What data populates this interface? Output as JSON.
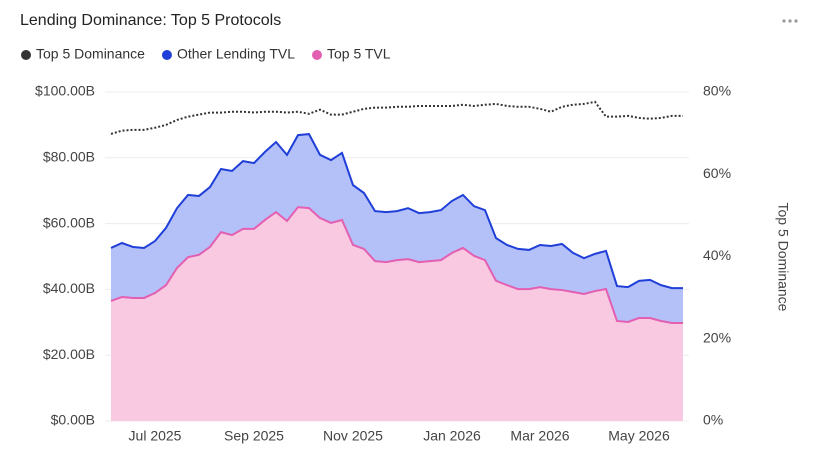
{
  "chart_data": {
    "type": "area",
    "stacked": true,
    "title": "Lending Dominance: Top 5 Protocols",
    "y2label": "Top 5 Dominance",
    "categories": [
      null,
      null,
      null,
      null,
      "Jul 2025",
      null,
      null,
      null,
      null,
      null,
      null,
      null,
      null,
      "Sep 2025",
      null,
      null,
      null,
      null,
      null,
      null,
      null,
      null,
      "Nov 2025",
      null,
      null,
      null,
      null,
      null,
      null,
      null,
      null,
      "Jan 2026",
      null,
      null,
      null,
      null,
      null,
      null,
      null,
      "Mar 2026",
      null,
      null,
      null,
      null,
      null,
      null,
      null,
      null,
      "May 2026",
      null,
      null,
      null,
      null
    ],
    "series": [
      {
        "name": "Top 5 Dominance",
        "color": "#333333",
        "axis": "y2",
        "dotted": true,
        "values": [
          69.8,
          70.6,
          70.8,
          70.8,
          71.3,
          72.0,
          73.2,
          74.0,
          74.5,
          75.0,
          75.0,
          75.2,
          75.2,
          75.0,
          75.2,
          75.2,
          75.0,
          75.2,
          74.7,
          75.7,
          74.5,
          74.5,
          75.2,
          75.9,
          76.2,
          76.2,
          76.4,
          76.4,
          76.6,
          76.6,
          76.6,
          76.6,
          76.9,
          76.6,
          76.9,
          77.1,
          76.6,
          76.4,
          76.4,
          75.9,
          75.2,
          76.4,
          76.9,
          77.1,
          77.6,
          74.0,
          74.0,
          74.2,
          73.7,
          73.5,
          73.7,
          74.2,
          74.2
        ]
      },
      {
        "name": "Other Lending TVL",
        "color": "#1f3fd8",
        "fill": "#b4c0f8",
        "values": [
          16.1,
          16.4,
          15.5,
          15.2,
          15.8,
          17.4,
          18.2,
          18.9,
          17.9,
          18.2,
          19.2,
          19.5,
          20.6,
          20.0,
          20.7,
          21.3,
          20.1,
          21.9,
          22.5,
          19.2,
          19.1,
          20.4,
          18.2,
          17.0,
          15.2,
          15.2,
          14.9,
          15.5,
          14.9,
          14.9,
          15.2,
          15.8,
          16.1,
          15.1,
          15.2,
          13.0,
          12.2,
          12.2,
          11.9,
          12.8,
          13.1,
          14.0,
          11.9,
          10.9,
          11.3,
          11.6,
          10.6,
          10.6,
          11.3,
          11.6,
          10.9,
          10.6,
          10.6
        ]
      },
      {
        "name": "Top 5 TVL",
        "color": "#e25fb2",
        "fill": "#f8c9e1",
        "values": [
          36.5,
          37.7,
          37.4,
          37.4,
          38.9,
          41.3,
          46.5,
          49.8,
          50.5,
          52.9,
          57.4,
          56.5,
          58.4,
          58.4,
          61.1,
          63.5,
          60.8,
          65.0,
          64.7,
          61.7,
          60.2,
          61.1,
          53.5,
          52.3,
          48.6,
          48.3,
          48.9,
          49.2,
          48.3,
          48.6,
          48.9,
          51.1,
          52.6,
          50.2,
          48.9,
          42.6,
          41.3,
          40.1,
          40.1,
          40.7,
          40.1,
          39.8,
          39.2,
          38.6,
          39.5,
          40.1,
          30.4,
          30.1,
          31.3,
          31.3,
          30.4,
          29.8,
          29.8
        ]
      }
    ],
    "ylim": [
      0,
      100
    ],
    "yticks": [
      {
        "value": 0,
        "label": "$0.00B"
      },
      {
        "value": 20,
        "label": "$20.00B"
      },
      {
        "value": 40,
        "label": "$40.00B"
      },
      {
        "value": 60,
        "label": "$60.00B"
      },
      {
        "value": 80,
        "label": "$80.00B"
      },
      {
        "value": 100,
        "label": "$100.00B"
      }
    ],
    "y2lim": [
      0,
      80
    ],
    "y2ticks": [
      {
        "value": 0,
        "label": "0%"
      },
      {
        "value": 20,
        "label": "20%"
      },
      {
        "value": 40,
        "label": "40%"
      },
      {
        "value": 60,
        "label": "60%"
      },
      {
        "value": 80,
        "label": "80%"
      }
    ],
    "grid": true
  }
}
